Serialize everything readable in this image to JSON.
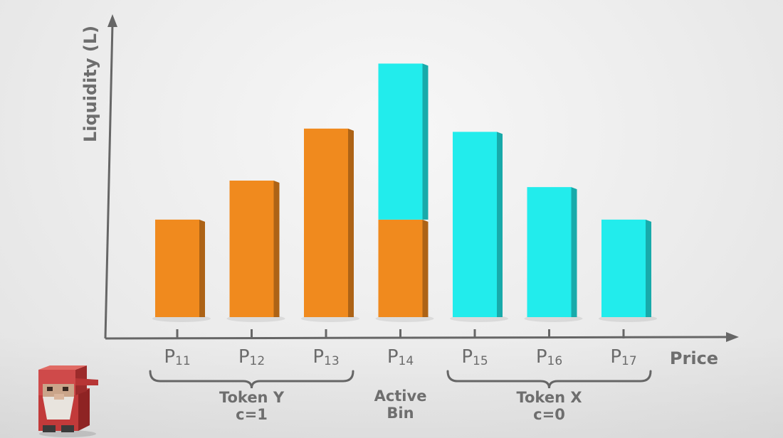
{
  "colors": {
    "token_y": "#f08a1e",
    "token_x": "#22ecec",
    "axis": "#666666",
    "text": "#6b6b6b",
    "background": "#ececec"
  },
  "chart_data": {
    "type": "bar",
    "stacked": true,
    "title": "",
    "xlabel": "Price",
    "ylabel": "Liquidity (L)",
    "categories": [
      {
        "base": "P",
        "sub": "11"
      },
      {
        "base": "P",
        "sub": "12"
      },
      {
        "base": "P",
        "sub": "13"
      },
      {
        "base": "P",
        "sub": "14"
      },
      {
        "base": "P",
        "sub": "15"
      },
      {
        "base": "P",
        "sub": "16"
      },
      {
        "base": "P",
        "sub": "17"
      }
    ],
    "series": [
      {
        "key": "token_y",
        "values": [
          1.5,
          2.1,
          2.9,
          1.5,
          0,
          0,
          0
        ]
      },
      {
        "key": "token_x",
        "values": [
          0,
          0,
          0,
          2.4,
          2.85,
          2.0,
          1.5
        ]
      }
    ],
    "ylim": [
      0,
      4.2
    ],
    "grid": false,
    "groups": [
      {
        "line1": "Token Y",
        "line2": "c=1",
        "from": 0,
        "to": 2,
        "brace": true
      },
      {
        "line1": "Active",
        "line2": "Bin",
        "from": 3,
        "to": 3,
        "brace": false
      },
      {
        "line1": "Token X",
        "line2": "c=0",
        "from": 4,
        "to": 6,
        "brace": true
      }
    ]
  },
  "mascot_icon": "red-capped-bearded-character-icon"
}
